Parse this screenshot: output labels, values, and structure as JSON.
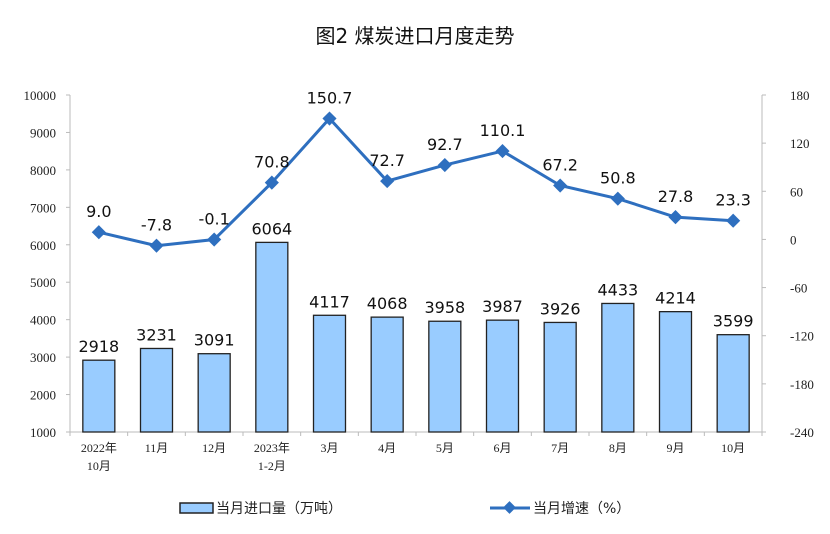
{
  "chart_data": {
    "title": "图2 煤炭进口月度走势",
    "type": "bar+line",
    "categories": [
      "2022年\n10月",
      "11月",
      "12月",
      "2023年\n1-2月",
      "3月",
      "4月",
      "5月",
      "6月",
      "7月",
      "8月",
      "9月",
      "10月"
    ],
    "series": [
      {
        "name": "当月进口量（万吨）",
        "type": "bar",
        "axis": "left",
        "values": [
          2918,
          3231,
          3091,
          6064,
          4117,
          4068,
          3958,
          3987,
          3926,
          4433,
          4214,
          3599
        ],
        "color": "#99ccff"
      },
      {
        "name": "当月增速（%）",
        "type": "line",
        "axis": "right",
        "values": [
          9.0,
          -7.8,
          -0.1,
          70.8,
          150.7,
          72.7,
          92.7,
          110.1,
          67.2,
          50.8,
          27.8,
          23.3
        ],
        "color": "#2e6fbf"
      }
    ],
    "left_axis": {
      "range": [
        1000,
        10000
      ],
      "ticks": [
        1000,
        2000,
        3000,
        4000,
        5000,
        6000,
        7000,
        8000,
        9000,
        10000
      ]
    },
    "right_axis": {
      "range": [
        -240,
        180
      ],
      "ticks": [
        -240,
        -180,
        -120,
        -60,
        0,
        60,
        120,
        180
      ]
    },
    "legend": "bottom",
    "grid": false
  }
}
